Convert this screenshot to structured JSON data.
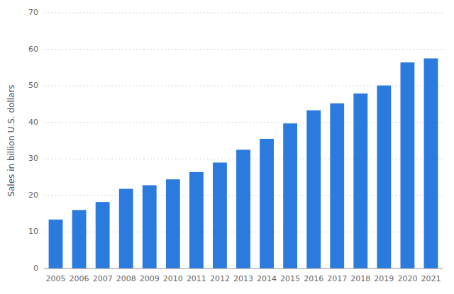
{
  "chart_data": {
    "type": "bar",
    "categories": [
      "2005",
      "2006",
      "2007",
      "2008",
      "2009",
      "2010",
      "2011",
      "2012",
      "2013",
      "2014",
      "2015",
      "2016",
      "2017",
      "2018",
      "2019",
      "2020",
      "2021"
    ],
    "values": [
      13.4,
      16.0,
      18.2,
      21.8,
      22.8,
      24.4,
      26.4,
      29.0,
      32.5,
      35.5,
      39.7,
      43.3,
      45.2,
      47.9,
      50.1,
      56.4,
      57.5
    ],
    "color": "#2b7bde",
    "ylabel": "Sales in billion U.S. dollars",
    "ylim": [
      0,
      70
    ],
    "yticks": [
      0,
      10,
      20,
      30,
      40,
      50,
      60,
      70
    ],
    "grid": true
  }
}
